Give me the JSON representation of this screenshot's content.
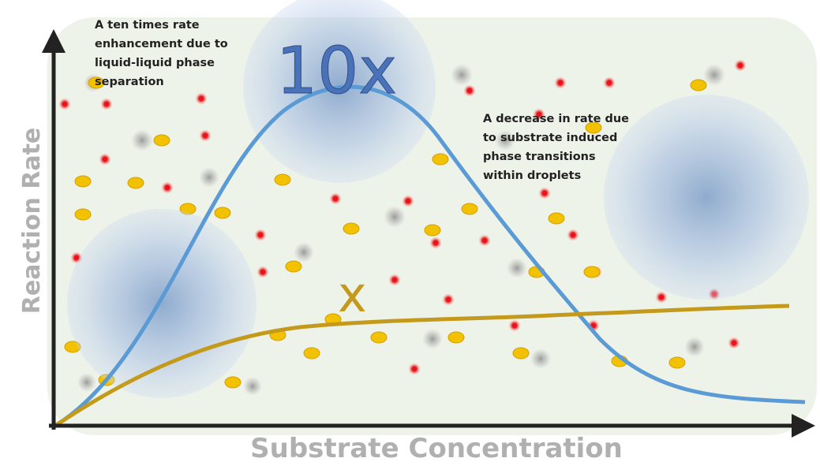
{
  "axes": {
    "y_label": "Reaction Rate",
    "x_label": "Substrate Concentration"
  },
  "curve_labels": {
    "llps": "10x",
    "baseline": "x"
  },
  "annotations": [
    {
      "lines": [
        "A ten times rate",
        "enhancement due to",
        "liquid-liquid phase",
        "separation"
      ]
    },
    {
      "lines": [
        "A decrease in rate due",
        "to substrate induced",
        "phase transitions",
        "within droplets"
      ]
    }
  ]
}
